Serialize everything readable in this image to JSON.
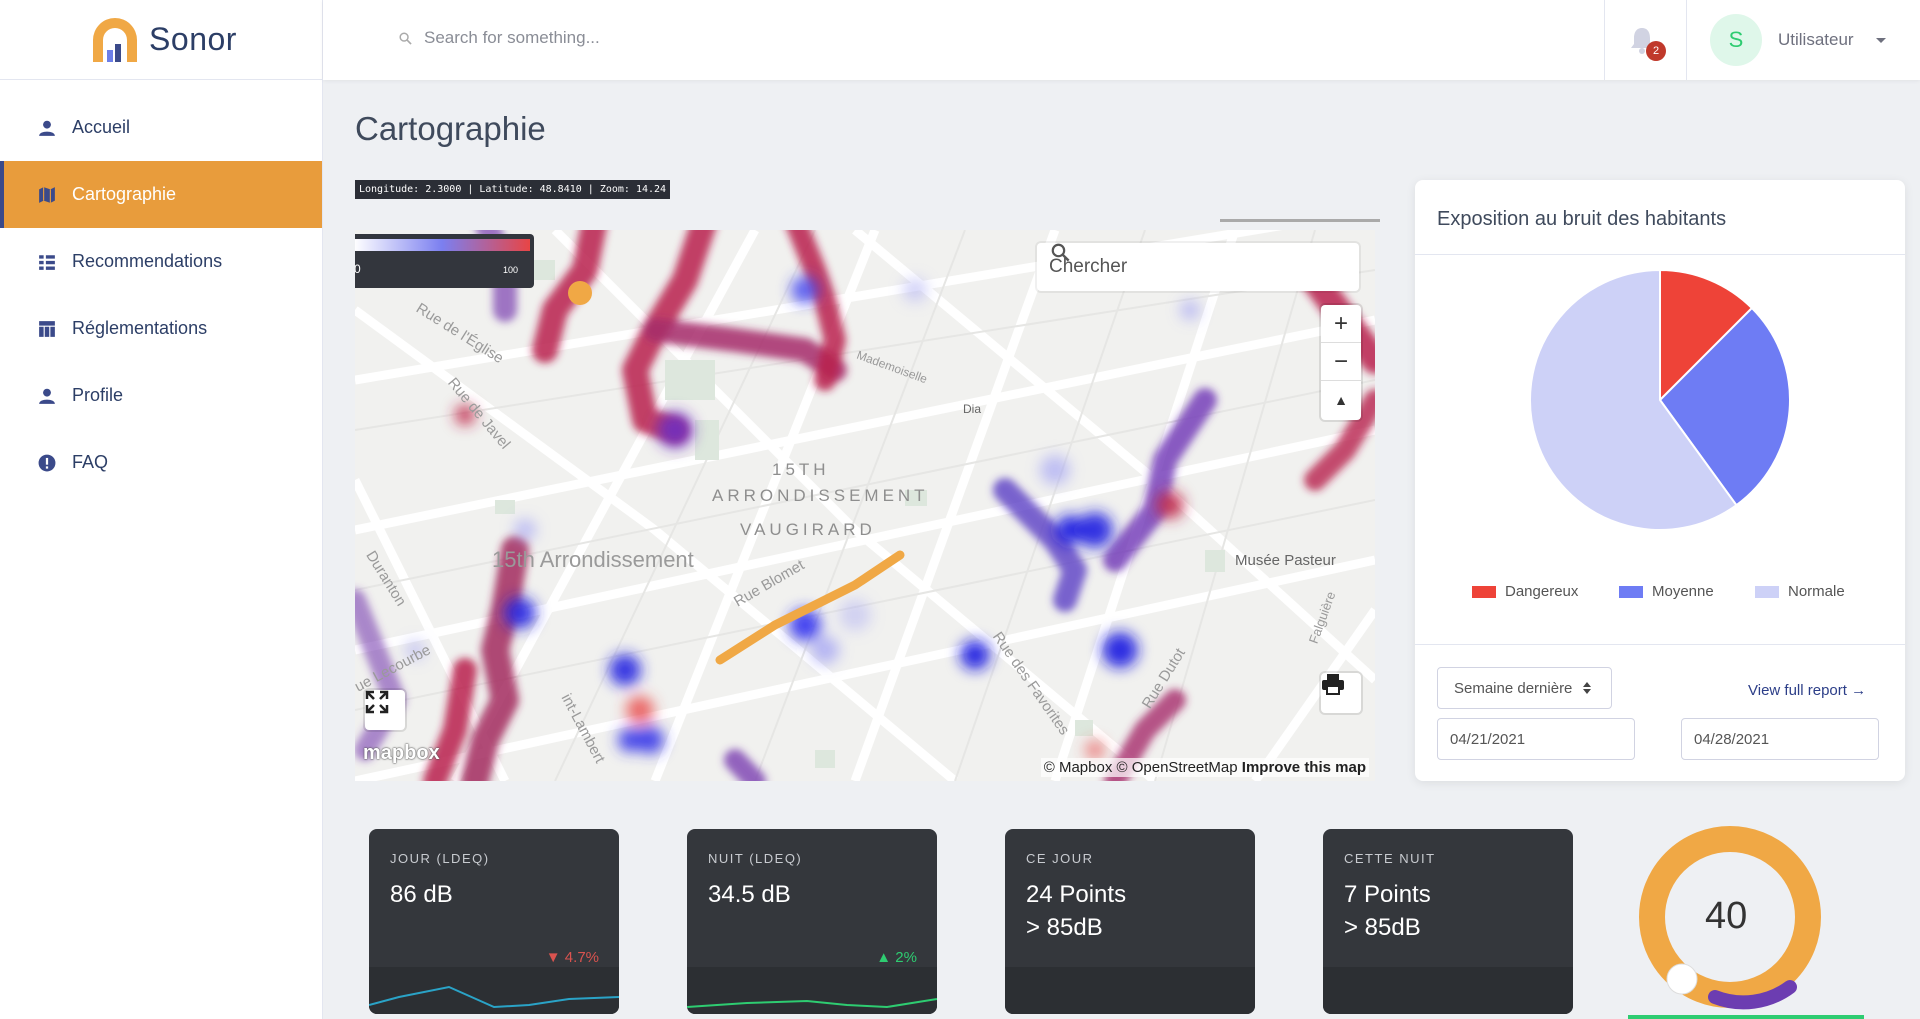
{
  "brand": {
    "name": "Sonor"
  },
  "sidebar": {
    "items": [
      {
        "label": "Accueil",
        "icon": "user-icon",
        "active": false
      },
      {
        "label": "Cartographie",
        "icon": "map-icon",
        "active": true
      },
      {
        "label": "Recommendations",
        "icon": "list-icon",
        "active": false
      },
      {
        "label": "Réglementations",
        "icon": "table-icon",
        "active": false
      },
      {
        "label": "Profile",
        "icon": "user-icon",
        "active": false
      },
      {
        "label": "FAQ",
        "icon": "info-circle-icon",
        "active": false
      }
    ]
  },
  "topbar": {
    "search_placeholder": "Search for something...",
    "notifications_count": "2",
    "avatar_initial": "S",
    "username": "Utilisateur"
  },
  "page": {
    "title": "Cartographie"
  },
  "map": {
    "coords_readout": "Longitude: 2.3000 | Latitude: 48.8410 | Zoom: 14.24",
    "legend_min": "0",
    "legend_max": "100",
    "search_placeholder": "Chercher",
    "zoom_in": "+",
    "zoom_out": "−",
    "compass": "▲",
    "attribution_osm": "© Mapbox © OpenStreetMap",
    "attribution_improve": "Improve this map",
    "mapbox_logo": "mapbox",
    "labels": {
      "district1": "15TH",
      "district2": "ARRONDISSEMENT",
      "district3": "VAUGIRARD",
      "area": "15th Arrondissement",
      "rue_eglise": "Rue de l'Église",
      "rue_javel": "Rue de Javel",
      "rue_blomet": "Rue Blomet",
      "rue_favorites": "Rue des Favorites",
      "rue_dutot": "Rue Dutot",
      "rue_lecourbe": "ue Lecourbe",
      "duranton": "Duranton",
      "st_lambert": "int-Lambert",
      "musee": "Musée Pasteur",
      "dia": "Dia",
      "mademoiselle": "Mademoiselle",
      "falguiere": "Falguière"
    }
  },
  "exposure": {
    "title": "Exposition au bruit des habitants",
    "pie": [
      {
        "name": "Dangereux",
        "value": 12.5,
        "color": "#ee4338"
      },
      {
        "name": "Moyenne",
        "value": 27.5,
        "color": "#6e7cf4"
      },
      {
        "name": "Normale",
        "value": 60,
        "color": "#cdd1f7"
      }
    ],
    "period_select": "Semaine dernière",
    "view_report": "View full report →",
    "date_start": "04/21/2021",
    "date_end": "04/28/2021"
  },
  "stats": [
    {
      "label": "JOUR (LDEQ)",
      "value": "86 dB",
      "value2": "",
      "trend": "▼ 4.7%",
      "trend_color": "#d9534f",
      "spark_color": "#2aa3c7"
    },
    {
      "label": "NUIT (LDEQ)",
      "value": "34.5 dB",
      "value2": "",
      "trend": "▲ 2%",
      "trend_color": "#2ecc71",
      "spark_color": "#2ecc71"
    },
    {
      "label": "CE JOUR",
      "value": "24 Points",
      "value2": "> 85dB",
      "trend": "",
      "trend_color": "",
      "spark_color": ""
    },
    {
      "label": "CETTE NUIT",
      "value": "7 Points",
      "value2": "> 85dB",
      "trend": "",
      "trend_color": "",
      "spark_color": ""
    }
  ],
  "gauge": {
    "value": "40",
    "fill": 0.4,
    "color": "#f0a845",
    "track_color": "#6c3db1"
  }
}
